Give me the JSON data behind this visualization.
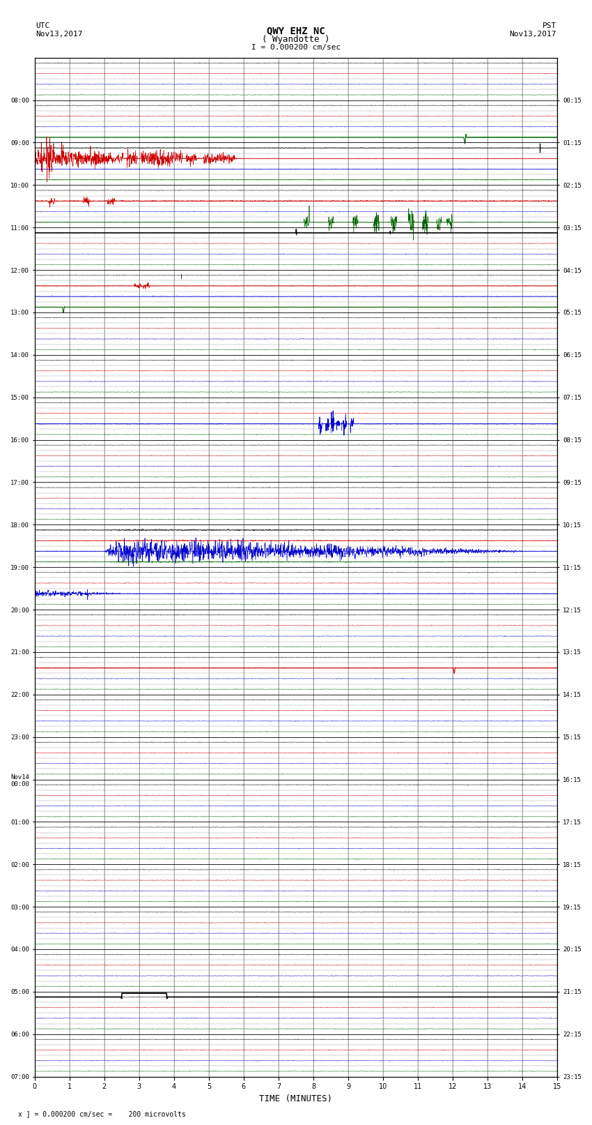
{
  "title_line1": "QWY EHZ NC",
  "title_line2": "( Wyandotte )",
  "scale_label": "I = 0.000200 cm/sec",
  "utc_label": "UTC\nNov13,2017",
  "pst_label": "PST\nNov13,2017",
  "xlabel": "TIME (MINUTES)",
  "footer_label": "x ] = 0.000200 cm/sec =    200 microvolts",
  "xlim": [
    0,
    15
  ],
  "xticks": [
    0,
    1,
    2,
    3,
    4,
    5,
    6,
    7,
    8,
    9,
    10,
    11,
    12,
    13,
    14,
    15
  ],
  "num_rows": 24,
  "bg_color": "#ffffff",
  "figsize": [
    8.5,
    16.13
  ],
  "dpi": 100,
  "utc_times": [
    "08:00",
    "09:00",
    "10:00",
    "11:00",
    "12:00",
    "13:00",
    "14:00",
    "15:00",
    "16:00",
    "17:00",
    "18:00",
    "19:00",
    "20:00",
    "21:00",
    "22:00",
    "23:00",
    "Nov14\n00:00",
    "01:00",
    "02:00",
    "03:00",
    "04:00",
    "05:00",
    "06:00",
    "07:00"
  ],
  "pst_times": [
    "00:15",
    "01:15",
    "02:15",
    "03:15",
    "04:15",
    "05:15",
    "06:15",
    "07:15",
    "08:15",
    "09:15",
    "10:15",
    "11:15",
    "12:15",
    "13:15",
    "14:15",
    "15:15",
    "16:15",
    "17:15",
    "18:15",
    "19:15",
    "20:15",
    "21:15",
    "22:15",
    "23:15"
  ],
  "sublines_per_row": 4
}
